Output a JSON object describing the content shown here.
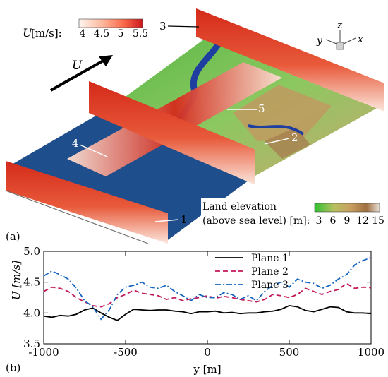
{
  "panel_a": {
    "label": "(a)",
    "colorbar_u": {
      "label_symbol": "U",
      "label_unit": " [m/s]:",
      "ticks": [
        "4",
        "4.5",
        "5",
        "5.5"
      ],
      "colors": [
        "#fff5f0",
        "#fcbba1",
        "#fb6a4a",
        "#cb181d"
      ]
    },
    "colorbar_land": {
      "label_line1": "Land elevation",
      "label_line2": "(above sea level) [m]:",
      "ticks": [
        "3",
        "6",
        "9",
        "12",
        "15"
      ],
      "colors": [
        "#30c030",
        "#b8c060",
        "#c8a060",
        "#a07040",
        "#e8e0d8"
      ]
    },
    "flow_arrow_label": "U",
    "axes_triad": {
      "z": "z",
      "y": "y",
      "x": "x"
    },
    "plane_labels": [
      "1",
      "2",
      "3",
      "4",
      "5"
    ],
    "colors": {
      "sea": "#1f4e8c",
      "river": "#1e3fa0",
      "land": "#7cc060",
      "plane_hi": "#d42a1a",
      "plane_lo": "#fbe6dc"
    }
  },
  "panel_b": {
    "label": "(b)",
    "chart_data": {
      "type": "line",
      "xlabel": "y [m]",
      "ylabel": "U [m/s]",
      "xlim": [
        -1000,
        1000
      ],
      "ylim": [
        3.5,
        5.0
      ],
      "xticks": [
        -1000,
        -500,
        0,
        500,
        1000
      ],
      "yticks": [
        3.5,
        4.0,
        4.5,
        5.0
      ],
      "legend_position": "top-right",
      "series": [
        {
          "name": "Plane 1",
          "color": "#000000",
          "dash": "solid",
          "x": [
            -1000,
            -950,
            -900,
            -850,
            -800,
            -750,
            -700,
            -650,
            -600,
            -550,
            -500,
            -450,
            -400,
            -350,
            -300,
            -250,
            -200,
            -150,
            -100,
            -50,
            0,
            50,
            100,
            150,
            200,
            250,
            300,
            350,
            400,
            450,
            500,
            550,
            600,
            650,
            700,
            750,
            800,
            850,
            900,
            950,
            1000
          ],
          "y": [
            3.95,
            3.93,
            3.96,
            3.95,
            3.98,
            4.05,
            4.08,
            4.0,
            3.93,
            3.88,
            3.98,
            4.06,
            4.05,
            4.04,
            4.05,
            4.05,
            4.03,
            4.02,
            3.99,
            4.02,
            4.02,
            4.03,
            4.0,
            4.01,
            3.99,
            4.0,
            4.0,
            4.02,
            4.03,
            4.06,
            4.12,
            4.1,
            4.04,
            4.02,
            4.06,
            4.1,
            4.09,
            4.02,
            4.0,
            4.0,
            3.99
          ]
        },
        {
          "name": "Plane 2",
          "color": "#c2185b",
          "dash": "dashed",
          "x": [
            -1000,
            -950,
            -900,
            -850,
            -800,
            -750,
            -700,
            -650,
            -600,
            -550,
            -500,
            -450,
            -400,
            -350,
            -300,
            -250,
            -200,
            -150,
            -100,
            -50,
            0,
            50,
            100,
            150,
            200,
            250,
            300,
            350,
            400,
            450,
            500,
            550,
            600,
            650,
            700,
            750,
            800,
            850,
            900,
            950,
            1000
          ],
          "y": [
            4.35,
            4.42,
            4.4,
            4.35,
            4.25,
            4.18,
            4.12,
            4.1,
            4.15,
            4.25,
            4.3,
            4.37,
            4.32,
            4.3,
            4.28,
            4.22,
            4.25,
            4.2,
            4.23,
            4.25,
            4.28,
            4.24,
            4.27,
            4.25,
            4.22,
            4.2,
            4.18,
            4.22,
            4.3,
            4.28,
            4.25,
            4.3,
            4.4,
            4.35,
            4.3,
            4.35,
            4.38,
            4.48,
            4.4,
            4.42,
            4.41
          ]
        },
        {
          "name": "Plane 3",
          "color": "#1565c0",
          "dash": "dashdot",
          "x": [
            -1000,
            -950,
            -900,
            -850,
            -800,
            -750,
            -700,
            -650,
            -600,
            -550,
            -500,
            -450,
            -400,
            -350,
            -300,
            -250,
            -200,
            -150,
            -100,
            -50,
            0,
            50,
            100,
            150,
            200,
            250,
            300,
            350,
            400,
            450,
            500,
            550,
            600,
            650,
            700,
            750,
            800,
            850,
            900,
            950,
            1000
          ],
          "y": [
            4.6,
            4.68,
            4.62,
            4.55,
            4.4,
            4.2,
            4.1,
            3.9,
            4.05,
            4.3,
            4.42,
            4.45,
            4.5,
            4.42,
            4.4,
            4.45,
            4.35,
            4.28,
            4.2,
            4.3,
            4.25,
            4.25,
            4.33,
            4.3,
            4.22,
            4.28,
            4.2,
            4.35,
            4.45,
            4.5,
            4.42,
            4.55,
            4.5,
            4.48,
            4.4,
            4.45,
            4.55,
            4.62,
            4.78,
            4.85,
            4.9
          ]
        }
      ]
    }
  }
}
